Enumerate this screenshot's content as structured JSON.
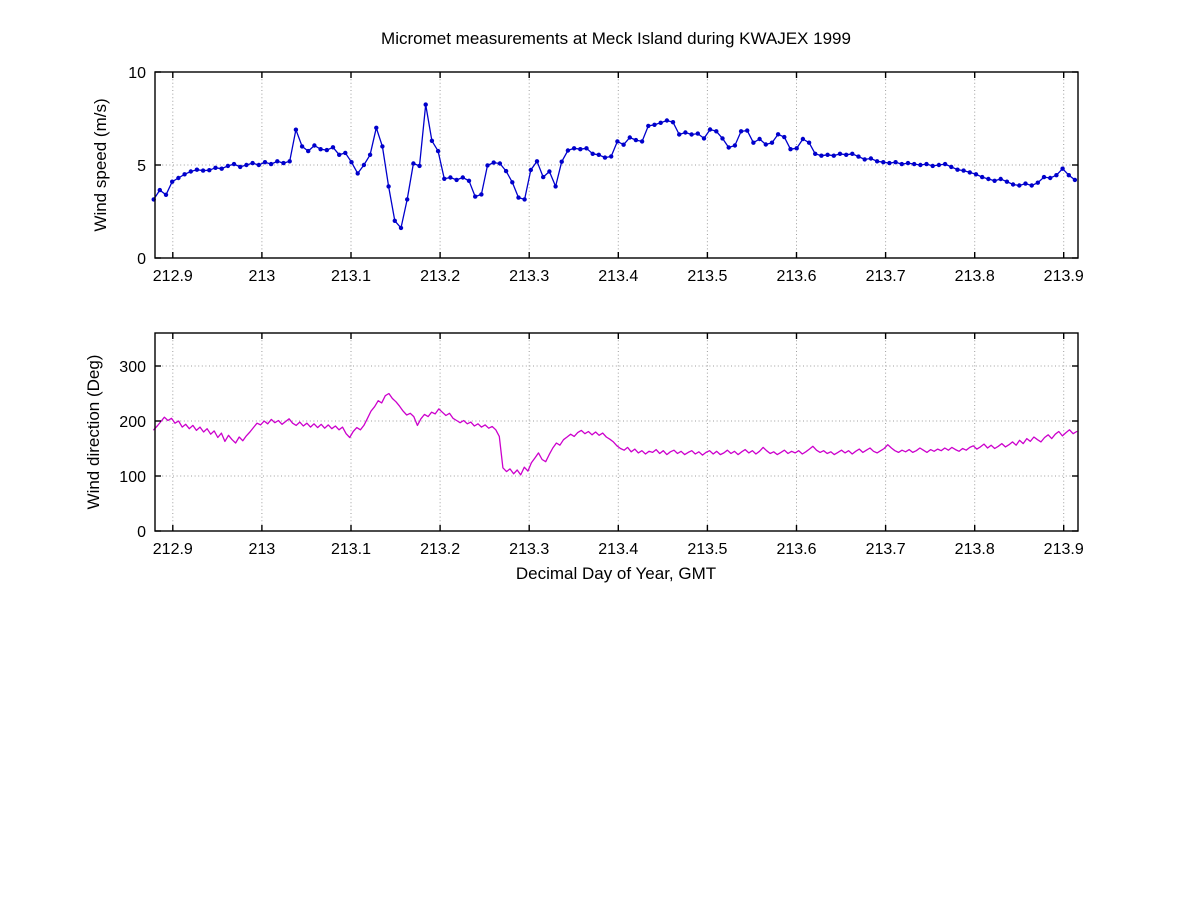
{
  "figure": {
    "background": "#ffffff",
    "title": "Micromet measurements at Meck Island during KWAJEX 1999"
  },
  "chart_data": [
    {
      "type": "line",
      "name": "wind-speed",
      "title": "Micromet measurements at Meck Island during KWAJEX 1999",
      "xlabel": "",
      "ylabel": "Wind speed (m/s)",
      "line_color": "#0000cc",
      "marker": "dot",
      "grid": true,
      "xlim": [
        212.88,
        213.916
      ],
      "ylim": [
        0,
        10
      ],
      "x_ticks": [
        212.9,
        213.0,
        213.1,
        213.2,
        213.3,
        213.4,
        213.5,
        213.6,
        213.7,
        213.8,
        213.9
      ],
      "x_tick_labels": [
        "212.9",
        "213",
        "213.1",
        "213.2",
        "213.3",
        "213.4",
        "213.5",
        "213.6",
        "213.7",
        "213.8",
        "213.9"
      ],
      "y_ticks": [
        0,
        5,
        10
      ],
      "y_tick_labels": [
        "0",
        "5",
        "10"
      ],
      "x_start": 212.8785,
      "x_step": 0.00694,
      "values": [
        3.15,
        3.65,
        3.4,
        4.1,
        4.3,
        4.5,
        4.65,
        4.75,
        4.7,
        4.72,
        4.85,
        4.8,
        4.95,
        5.05,
        4.9,
        5.0,
        5.1,
        5.0,
        5.15,
        5.05,
        5.2,
        5.1,
        5.2,
        6.9,
        6.0,
        5.75,
        6.05,
        5.85,
        5.8,
        5.95,
        5.55,
        5.65,
        5.15,
        4.55,
        5.0,
        5.55,
        7.0,
        6.0,
        3.85,
        2.0,
        1.62,
        3.15,
        5.08,
        4.95,
        8.25,
        6.3,
        5.75,
        4.26,
        4.33,
        4.2,
        4.33,
        4.15,
        3.3,
        3.42,
        4.98,
        5.13,
        5.08,
        4.67,
        4.07,
        3.25,
        3.15,
        4.73,
        5.2,
        4.35,
        4.65,
        3.85,
        5.18,
        5.78,
        5.9,
        5.85,
        5.9,
        5.6,
        5.55,
        5.4,
        5.46,
        6.27,
        6.09,
        6.48,
        6.34,
        6.27,
        7.1,
        7.16,
        7.27,
        7.39,
        7.3,
        6.64,
        6.75,
        6.64,
        6.69,
        6.43,
        6.91,
        6.81,
        6.43,
        5.94,
        6.05,
        6.81,
        6.85,
        6.2,
        6.4,
        6.1,
        6.2,
        6.65,
        6.5,
        5.85,
        5.9,
        6.4,
        6.2,
        5.6,
        5.5,
        5.55,
        5.5,
        5.6,
        5.55,
        5.6,
        5.45,
        5.3,
        5.35,
        5.2,
        5.15,
        5.1,
        5.15,
        5.05,
        5.1,
        5.05,
        5.0,
        5.05,
        4.95,
        5.0,
        5.05,
        4.9,
        4.75,
        4.7,
        4.6,
        4.5,
        4.35,
        4.25,
        4.15,
        4.25,
        4.1,
        3.95,
        3.9,
        4.0,
        3.9,
        4.05,
        4.35,
        4.3,
        4.45,
        4.8,
        4.45,
        4.2
      ]
    },
    {
      "type": "line",
      "name": "wind-direction",
      "title": "",
      "xlabel": "Decimal Day of Year, GMT",
      "ylabel": "Wind direction (Deg)",
      "line_color": "#cc00cc",
      "marker": "none",
      "grid": true,
      "xlim": [
        212.88,
        213.916
      ],
      "ylim": [
        0,
        360
      ],
      "x_ticks": [
        212.9,
        213.0,
        213.1,
        213.2,
        213.3,
        213.4,
        213.5,
        213.6,
        213.7,
        213.8,
        213.9
      ],
      "x_tick_labels": [
        "212.9",
        "213",
        "213.1",
        "213.2",
        "213.3",
        "213.4",
        "213.5",
        "213.6",
        "213.7",
        "213.8",
        "213.9"
      ],
      "y_ticks": [
        0,
        100,
        200,
        300
      ],
      "y_tick_labels": [
        "0",
        "100",
        "200",
        "300"
      ],
      "x_start": 212.8785,
      "x_step": 0.004,
      "values": [
        184,
        191,
        199,
        207,
        201,
        205,
        196,
        200,
        189,
        194,
        186,
        192,
        183,
        189,
        180,
        186,
        176,
        182,
        170,
        178,
        163,
        174,
        166,
        160,
        171,
        164,
        173,
        180,
        188,
        196,
        193,
        200,
        195,
        203,
        197,
        201,
        194,
        199,
        204,
        196,
        192,
        198,
        191,
        196,
        189,
        195,
        188,
        194,
        187,
        193,
        186,
        191,
        184,
        189,
        177,
        170,
        181,
        188,
        184,
        192,
        205,
        218,
        226,
        237,
        233,
        246,
        250,
        241,
        235,
        227,
        218,
        211,
        214,
        208,
        192,
        204,
        212,
        208,
        216,
        213,
        222,
        216,
        210,
        214,
        205,
        201,
        197,
        201,
        195,
        198,
        191,
        195,
        189,
        193,
        187,
        190,
        184,
        172,
        115,
        108,
        113,
        104,
        111,
        102,
        116,
        109,
        124,
        133,
        142,
        130,
        126,
        139,
        151,
        160,
        156,
        166,
        171,
        176,
        172,
        179,
        183,
        177,
        181,
        175,
        180,
        174,
        178,
        171,
        167,
        162,
        155,
        150,
        147,
        152,
        144,
        149,
        142,
        146,
        140,
        145,
        143,
        148,
        141,
        146,
        139,
        144,
        147,
        141,
        145,
        139,
        143,
        146,
        140,
        144,
        138,
        143,
        146,
        140,
        145,
        139,
        142,
        147,
        141,
        145,
        139,
        144,
        148,
        142,
        146,
        140,
        145,
        152,
        146,
        141,
        144,
        139,
        143,
        147,
        141,
        145,
        142,
        146,
        140,
        144,
        149,
        154,
        147,
        143,
        146,
        141,
        144,
        139,
        143,
        147,
        142,
        146,
        140,
        145,
        149,
        143,
        147,
        151,
        145,
        142,
        146,
        150,
        157,
        151,
        146,
        143,
        147,
        144,
        148,
        143,
        146,
        151,
        147,
        143,
        148,
        145,
        149,
        146,
        151,
        147,
        152,
        148,
        145,
        150,
        147,
        152,
        155,
        149,
        153,
        158,
        151,
        156,
        150,
        154,
        159,
        153,
        157,
        162,
        156,
        165,
        159,
        168,
        163,
        171,
        166,
        162,
        170,
        175,
        168,
        176,
        181,
        173,
        179,
        184,
        177,
        181
      ]
    }
  ]
}
